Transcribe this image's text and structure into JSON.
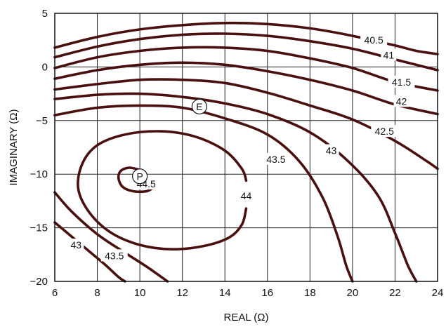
{
  "chart_data": {
    "type": "contour",
    "title": "",
    "xlabel": "REAL (Ω)",
    "ylabel": "IMAGINARY (Ω)",
    "xlim": [
      6,
      24
    ],
    "ylim": [
      -20,
      5
    ],
    "x_ticks": [
      6,
      8,
      10,
      12,
      14,
      16,
      18,
      20,
      22,
      24
    ],
    "y_ticks": [
      5,
      0,
      -5,
      -10,
      -15,
      -20
    ],
    "x_tick_labels": [
      "6",
      "8",
      "10",
      "12",
      "14",
      "16",
      "18",
      "20",
      "22",
      "24"
    ],
    "y_tick_labels": [
      "5",
      "0",
      "−5",
      "−10",
      "−15",
      "−20"
    ],
    "grid": true,
    "line_color": "#4a1010",
    "contours": [
      {
        "label": "40.5",
        "label_at": [
          21.0,
          2.5
        ],
        "points": [
          [
            6.0,
            1.8
          ],
          [
            8,
            2.8
          ],
          [
            10,
            3.5
          ],
          [
            12,
            3.9
          ],
          [
            14,
            4.1
          ],
          [
            16,
            4.0
          ],
          [
            18,
            3.6
          ],
          [
            20,
            2.9
          ],
          [
            22,
            2.0
          ],
          [
            23,
            1.5
          ],
          [
            24,
            1.2
          ]
        ]
      },
      {
        "label": "41",
        "label_at": [
          21.7,
          1.1
        ],
        "points": [
          [
            6.0,
            0.9
          ],
          [
            8,
            1.9
          ],
          [
            10,
            2.6
          ],
          [
            12,
            3.0
          ],
          [
            14,
            3.1
          ],
          [
            16,
            2.9
          ],
          [
            18,
            2.4
          ],
          [
            20,
            1.7
          ],
          [
            22,
            0.7
          ],
          [
            24,
            -0.3
          ]
        ]
      },
      {
        "label": "41.5",
        "label_at": [
          22.3,
          -1.4
        ],
        "points": [
          [
            6.0,
            -0.1
          ],
          [
            8,
            0.9
          ],
          [
            10,
            1.5
          ],
          [
            12,
            1.8
          ],
          [
            14,
            1.8
          ],
          [
            16,
            1.5
          ],
          [
            18,
            0.8
          ],
          [
            20,
            -0.1
          ],
          [
            22,
            -1.4
          ],
          [
            24,
            -2.2
          ]
        ]
      },
      {
        "label": "42",
        "label_at": [
          22.3,
          -3.2
        ],
        "points": [
          [
            6.0,
            -1.1
          ],
          [
            8,
            -0.3
          ],
          [
            10,
            0.2
          ],
          [
            12,
            0.4
          ],
          [
            14,
            0.2
          ],
          [
            16,
            -0.4
          ],
          [
            18,
            -1.2
          ],
          [
            20,
            -2.2
          ],
          [
            22,
            -3.5
          ],
          [
            24,
            -4.4
          ]
        ]
      },
      {
        "label": "42.5",
        "label_at": [
          21.5,
          -6.0
        ],
        "points": [
          [
            6.0,
            -2.1
          ],
          [
            8,
            -1.6
          ],
          [
            10,
            -1.2
          ],
          [
            12,
            -1.2
          ],
          [
            14,
            -1.5
          ],
          [
            16,
            -2.4
          ],
          [
            18,
            -3.6
          ],
          [
            20,
            -4.9
          ],
          [
            22,
            -6.9
          ],
          [
            23.5,
            -8.8
          ],
          [
            24,
            -9.5
          ]
        ]
      },
      {
        "label": "43",
        "label_at": [
          19.0,
          -7.8
        ],
        "points": [
          [
            6.0,
            -3.0
          ],
          [
            8,
            -2.6
          ],
          [
            10,
            -2.5
          ],
          [
            12,
            -2.8
          ],
          [
            14,
            -3.4
          ],
          [
            16,
            -4.4
          ],
          [
            18,
            -6.1
          ],
          [
            19.8,
            -8.8
          ],
          [
            21.2,
            -12.0
          ],
          [
            22.0,
            -15.5
          ],
          [
            22.6,
            -18.5
          ],
          [
            23.0,
            -20.0
          ]
        ]
      },
      {
        "label": "43.5",
        "label_at": [
          16.4,
          -8.6
        ],
        "points": [
          [
            6.0,
            -4.5
          ],
          [
            8,
            -3.8
          ],
          [
            10,
            -3.6
          ],
          [
            12,
            -3.8
          ],
          [
            14,
            -4.8
          ],
          [
            16,
            -6.3
          ],
          [
            17.5,
            -8.8
          ],
          [
            18.6,
            -12.2
          ],
          [
            19.3,
            -15.8
          ],
          [
            19.7,
            -18.5
          ],
          [
            20.0,
            -20.0
          ]
        ]
      },
      {
        "label": "44",
        "label_at": [
          15.0,
          -12.0
        ],
        "points": [
          [
            15.0,
            -13.2
          ],
          [
            14.8,
            -14.7
          ],
          [
            14.2,
            -15.9
          ],
          [
            13.0,
            -16.7
          ],
          [
            11.5,
            -17.0
          ],
          [
            10.0,
            -16.6
          ],
          [
            8.6,
            -15.4
          ],
          [
            7.6,
            -13.5
          ],
          [
            7.1,
            -11.3
          ],
          [
            7.3,
            -9.0
          ],
          [
            8.0,
            -7.3
          ],
          [
            9.3,
            -6.3
          ],
          [
            11.0,
            -6.0
          ],
          [
            12.6,
            -6.5
          ],
          [
            14.0,
            -7.8
          ],
          [
            14.8,
            -9.5
          ],
          [
            15.0,
            -10.6
          ]
        ]
      },
      {
        "label": "44.5",
        "label_at": [
          10.3,
          -10.9
        ],
        "points": [
          [
            10.0,
            -9.6
          ],
          [
            9.5,
            -9.4
          ],
          [
            9.1,
            -9.7
          ],
          [
            9.0,
            -10.4
          ],
          [
            9.2,
            -11.2
          ],
          [
            9.7,
            -11.6
          ],
          [
            10.3,
            -11.6
          ],
          [
            10.6,
            -11.3
          ]
        ]
      },
      {
        "label": "43",
        "label_at": [
          7.0,
          -16.6
        ],
        "points": [
          [
            6.0,
            -14.5
          ],
          [
            6.6,
            -15.5
          ],
          [
            7.2,
            -16.5
          ],
          [
            7.8,
            -17.5
          ],
          [
            8.4,
            -18.5
          ],
          [
            9.0,
            -19.6
          ],
          [
            9.3,
            -20.0
          ]
        ]
      },
      {
        "label": "43.5",
        "label_at": [
          8.8,
          -17.6
        ],
        "points": [
          [
            6.0,
            -11.7
          ],
          [
            6.8,
            -13.5
          ],
          [
            8.0,
            -15.6
          ],
          [
            9.2,
            -17.2
          ],
          [
            10.3,
            -18.6
          ],
          [
            11.3,
            -20.0
          ]
        ]
      }
    ],
    "markers": [
      {
        "label": "E",
        "x": 12.8,
        "y": -3.7
      },
      {
        "label": "P",
        "x": 10.0,
        "y": -10.2
      }
    ]
  }
}
